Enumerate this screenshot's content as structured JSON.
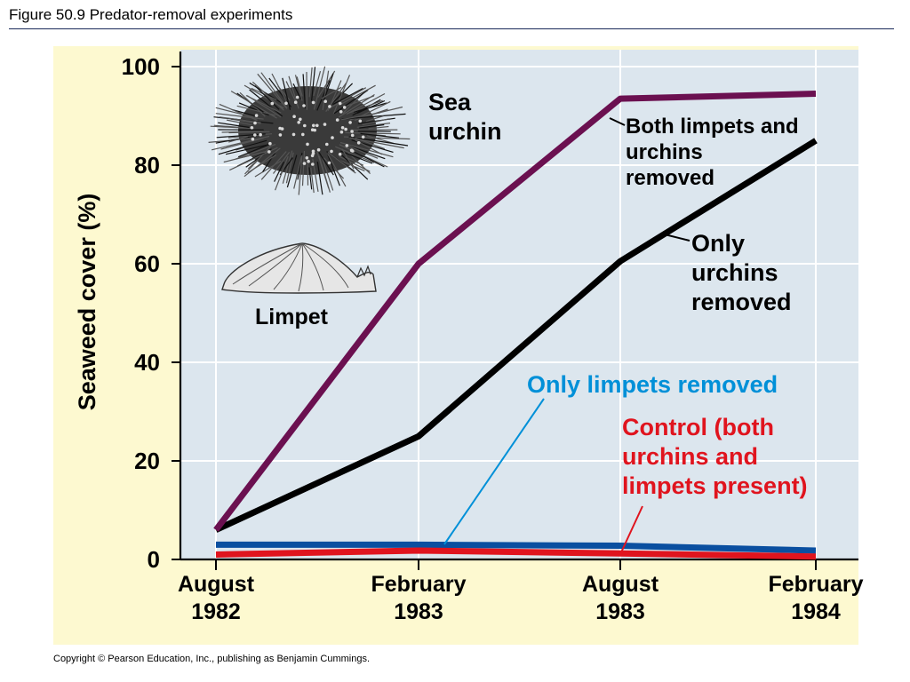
{
  "header": {
    "title": "Figure 50.9  Predator-removal experiments"
  },
  "footer": {
    "copyright": "Copyright © Pearson Education, Inc., publishing as Benjamin Cummings."
  },
  "colors": {
    "panel_bg": "#fdf9d0",
    "plot_bg": "#dce6ee",
    "both_removed": "#6b1050",
    "only_urchins": "#000000",
    "only_limpets": "#0090d8",
    "only_limpets_line": "#0a4fa0",
    "control": "#e0141e"
  },
  "illustrations": {
    "urchin_label_line1": "Sea",
    "urchin_label_line2": "urchin",
    "limpet_label": "Limpet",
    "urchin_icon": "sea-urchin-icon",
    "limpet_icon": "limpet-icon"
  },
  "chart_data": {
    "type": "line",
    "ylabel": "Seaweed cover (%)",
    "xlabel": "",
    "ylim": [
      0,
      100
    ],
    "yticks": [
      "0",
      "20",
      "40",
      "60",
      "80",
      "100"
    ],
    "grid": true,
    "categories": [
      {
        "line1": "August",
        "line2": "1982"
      },
      {
        "line1": "February",
        "line2": "1983"
      },
      {
        "line1": "August",
        "line2": "1983"
      },
      {
        "line1": "February",
        "line2": "1984"
      }
    ],
    "series": [
      {
        "key": "both",
        "label_lines": [
          "Both limpets and",
          "urchins",
          "removed"
        ],
        "values": [
          6,
          60,
          93.5,
          94.5
        ]
      },
      {
        "key": "urchins",
        "label_lines": [
          "Only",
          "urchins",
          "removed"
        ],
        "values": [
          6,
          25,
          60.5,
          85
        ]
      },
      {
        "key": "limpets",
        "label_lines": [
          "Only limpets removed"
        ],
        "values": [
          3,
          3,
          2.8,
          1.8
        ]
      },
      {
        "key": "control",
        "label_lines": [
          "Control (both",
          "urchins and",
          "limpets present)"
        ],
        "values": [
          1,
          1.8,
          1.2,
          0.6
        ]
      }
    ]
  }
}
